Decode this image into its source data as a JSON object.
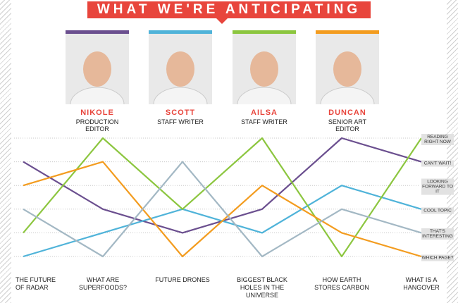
{
  "header": {
    "title": "WHAT WE'RE ANTICIPATING"
  },
  "chart_data": {
    "type": "line",
    "categories": [
      "THE FUTURE OF RADAR",
      "WHAT ARE SUPERFOODS?",
      "FUTURE DRONES",
      "BIGGEST BLACK HOLES IN THE UNIVERSE",
      "HOW EARTH STORES CARBON",
      "WHAT IS A HANGOVER"
    ],
    "ylim": [
      1,
      6
    ],
    "yticks": [
      {
        "value": 1,
        "label": "WHICH PAGE?"
      },
      {
        "value": 2,
        "label": "THAT'S INTERESTING"
      },
      {
        "value": 3,
        "label": "COOL TOPIC"
      },
      {
        "value": 4,
        "label": "LOOKING FORWARD TO IT"
      },
      {
        "value": 5,
        "label": "CAN'T WAIT!"
      },
      {
        "value": 6,
        "label": "READING RIGHT NOW"
      }
    ],
    "grid": true,
    "series": [
      {
        "name": "NIKOLE",
        "role": "PRODUCTION EDITOR",
        "color": "#6b4f8f",
        "values": [
          5,
          3,
          2,
          3,
          6,
          5
        ]
      },
      {
        "name": "SCOTT",
        "role": "STAFF WRITER",
        "color": "#4fb3d9",
        "values": [
          1,
          2,
          3,
          2,
          4,
          3
        ]
      },
      {
        "name": "AILSA",
        "role": "STAFF WRITER",
        "color": "#8cc63f",
        "values": [
          2,
          6,
          3,
          6,
          1,
          6
        ]
      },
      {
        "name": "DUNCAN",
        "role": "SENIOR ART EDITOR",
        "color": "#f39c1f",
        "values": [
          4,
          5,
          1,
          4,
          2,
          1
        ]
      },
      {
        "color": "#a3b8c4",
        "values": [
          3,
          1,
          5,
          1,
          3,
          2
        ]
      }
    ]
  }
}
